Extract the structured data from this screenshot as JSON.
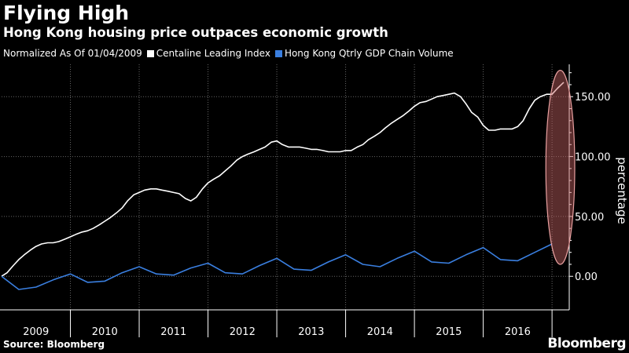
{
  "title": "Flying High",
  "subtitle": "Hong Kong housing price outpaces economic growth",
  "legend": {
    "note": "Normalized As Of 01/04/2009",
    "items": [
      {
        "label": "Centaline Leading Index",
        "color": "#ffffff"
      },
      {
        "label": "Hong Kong Qtrly GDP Chain Volume",
        "color": "#3a7fe0"
      }
    ]
  },
  "source": "Source: Bloomberg",
  "brand": "Bloomberg",
  "chart_data": {
    "type": "line",
    "ylabel": "percentage",
    "ylim": [
      -28,
      177
    ],
    "yticks": [
      0,
      50,
      100,
      150
    ],
    "ytick_labels": [
      "0.00",
      "50.00",
      "100.00",
      "150.00"
    ],
    "xlim": [
      2009.0,
      2017.25
    ],
    "years": [
      "2009",
      "2010",
      "2011",
      "2012",
      "2013",
      "2014",
      "2015",
      "2016"
    ],
    "grid": true,
    "legend_position": "top-left",
    "highlight_ellipse": {
      "x_center": 2017.12,
      "y_center": 91,
      "x_radius": 0.21,
      "y_radius": 81,
      "color": "#c86464"
    },
    "series": [
      {
        "name": "Centaline Leading Index",
        "color": "#ffffff",
        "x": [
          2009.0,
          2009.08,
          2009.17,
          2009.25,
          2009.33,
          2009.42,
          2009.5,
          2009.58,
          2009.67,
          2009.75,
          2009.83,
          2009.92,
          2010.0,
          2010.08,
          2010.17,
          2010.25,
          2010.33,
          2010.42,
          2010.5,
          2010.58,
          2010.67,
          2010.75,
          2010.83,
          2010.92,
          2011.0,
          2011.08,
          2011.17,
          2011.25,
          2011.33,
          2011.42,
          2011.5,
          2011.58,
          2011.67,
          2011.75,
          2011.83,
          2011.92,
          2012.0,
          2012.08,
          2012.17,
          2012.25,
          2012.33,
          2012.42,
          2012.5,
          2012.58,
          2012.67,
          2012.75,
          2012.83,
          2012.92,
          2013.0,
          2013.08,
          2013.17,
          2013.25,
          2013.33,
          2013.42,
          2013.5,
          2013.58,
          2013.67,
          2013.75,
          2013.83,
          2013.92,
          2014.0,
          2014.08,
          2014.17,
          2014.25,
          2014.33,
          2014.42,
          2014.5,
          2014.58,
          2014.67,
          2014.75,
          2014.83,
          2014.92,
          2015.0,
          2015.08,
          2015.17,
          2015.25,
          2015.33,
          2015.42,
          2015.5,
          2015.58,
          2015.67,
          2015.75,
          2015.83,
          2015.92,
          2016.0,
          2016.08,
          2016.17,
          2016.25,
          2016.33,
          2016.42,
          2016.5,
          2016.58,
          2016.67,
          2016.75,
          2016.83,
          2016.92,
          2017.0,
          2017.08,
          2017.17
        ],
        "values": [
          0,
          3,
          9,
          14,
          18,
          22,
          25,
          27,
          28,
          28,
          29,
          31,
          33,
          35,
          37,
          38,
          40,
          43,
          46,
          49,
          53,
          57,
          63,
          68,
          70,
          72,
          73,
          73,
          72,
          71,
          70,
          69,
          65,
          63,
          66,
          73,
          78,
          81,
          84,
          88,
          92,
          97,
          100,
          102,
          104,
          106,
          108,
          112,
          113,
          110,
          108,
          108,
          108,
          107,
          106,
          106,
          105,
          104,
          104,
          104,
          105,
          105,
          108,
          110,
          114,
          117,
          120,
          124,
          128,
          131,
          134,
          138,
          142,
          145,
          146,
          148,
          150,
          151,
          152,
          153,
          150,
          144,
          137,
          133,
          126,
          122,
          122,
          123,
          123,
          123,
          125,
          130,
          140,
          147,
          150,
          152,
          152,
          157,
          162
        ]
      },
      {
        "name": "Hong Kong Qtrly GDP Chain Volume",
        "color": "#3a7fe0",
        "x": [
          2009.0,
          2009.25,
          2009.5,
          2009.75,
          2010.0,
          2010.25,
          2010.5,
          2010.75,
          2011.0,
          2011.25,
          2011.5,
          2011.75,
          2012.0,
          2012.25,
          2012.5,
          2012.75,
          2013.0,
          2013.25,
          2013.5,
          2013.75,
          2014.0,
          2014.25,
          2014.5,
          2014.75,
          2015.0,
          2015.25,
          2015.5,
          2015.75,
          2016.0,
          2016.25,
          2016.5,
          2016.75,
          2017.0
        ],
        "values": [
          0,
          -11,
          -9,
          -3,
          2,
          -5,
          -4,
          3,
          8,
          2,
          1,
          7,
          11,
          3,
          2,
          9,
          15,
          6,
          5,
          12,
          18,
          10,
          8,
          15,
          21,
          12,
          11,
          18,
          24,
          14,
          13,
          20,
          27
        ]
      }
    ]
  }
}
